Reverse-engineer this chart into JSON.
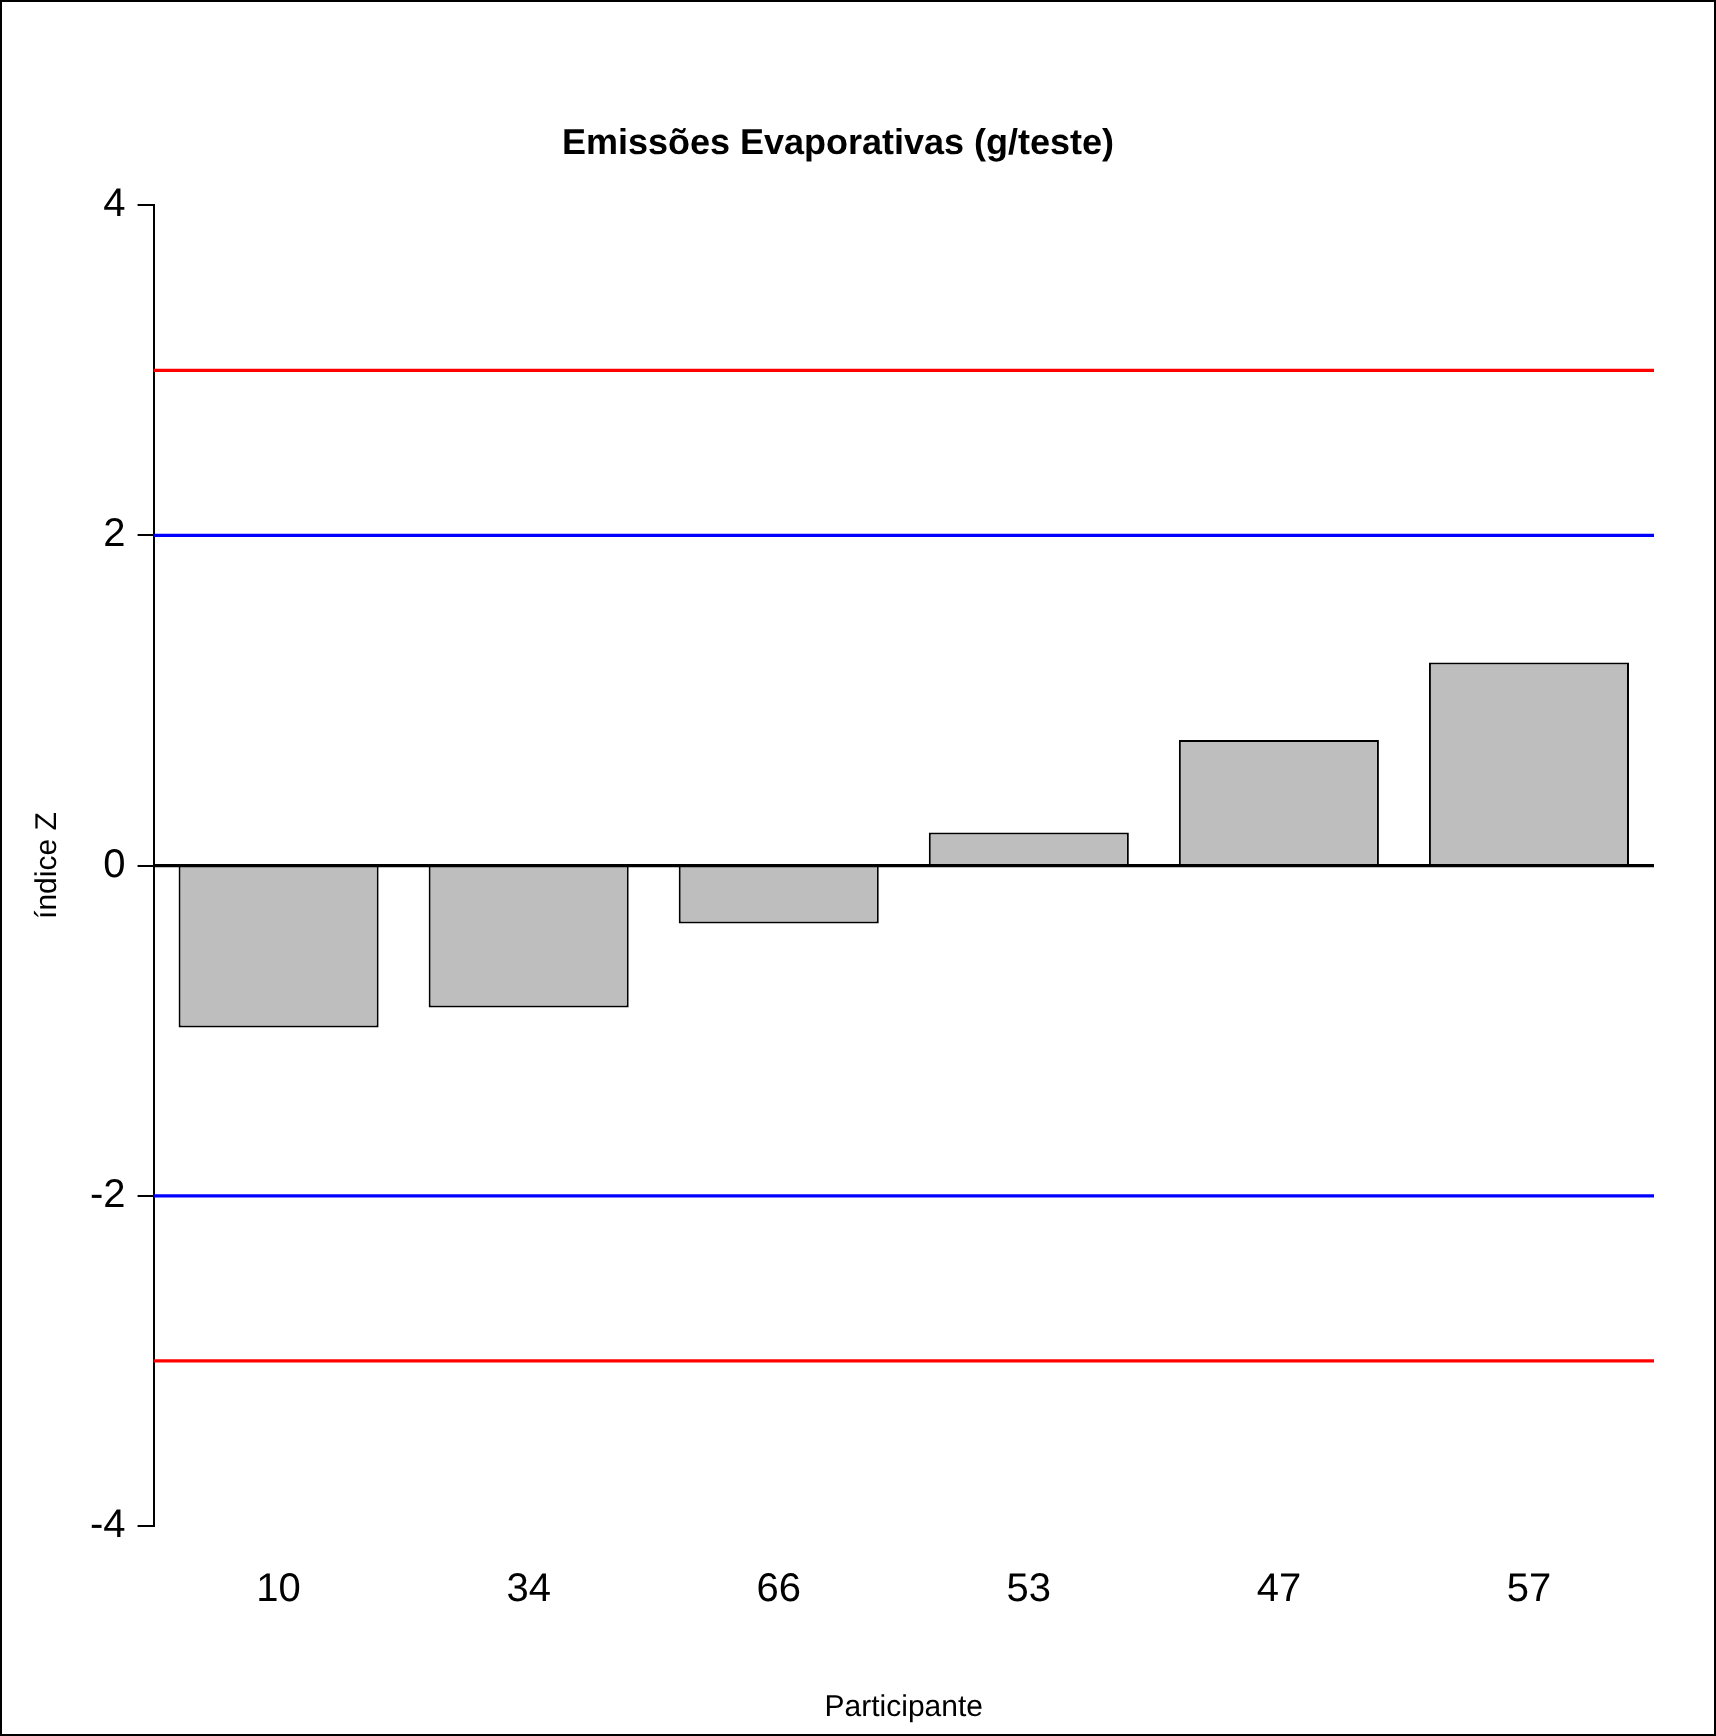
{
  "chart_data": {
    "type": "bar",
    "title": "Emissões Evaporativas (g/teste)",
    "xlabel": "Participante",
    "ylabel": "índice Z",
    "categories": [
      "10",
      "34",
      "66",
      "53",
      "47",
      "57"
    ],
    "values": [
      -0.98,
      -0.86,
      -0.35,
      0.2,
      0.76,
      1.23
    ],
    "color": "#bebebe",
    "ylim": [
      -4,
      4
    ],
    "yticks": [
      -4,
      -2,
      0,
      2,
      4
    ],
    "grid": false,
    "legend": false,
    "ref_lines": [
      {
        "axis": "y",
        "value": 0,
        "color": "#000000"
      },
      {
        "axis": "y",
        "value": 2,
        "color": "#0000ff"
      },
      {
        "axis": "y",
        "value": -2,
        "color": "#0000ff"
      },
      {
        "axis": "y",
        "value": 3,
        "color": "#ff0000"
      },
      {
        "axis": "y",
        "value": -3,
        "color": "#ff0000"
      }
    ]
  }
}
